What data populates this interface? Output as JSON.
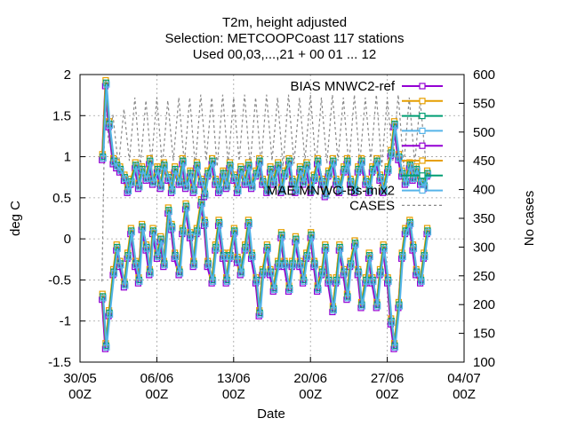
{
  "chart_data": {
    "type": "line",
    "title_lines": [
      "T2m, height adjusted",
      "Selection: METCOOPCoast    117 stations",
      "Used 00,03,...,21 + 00 01 ... 12"
    ],
    "xlabel": "Date",
    "ylabel": "deg C",
    "y2label": "No cases",
    "ylim": [
      -1.5,
      2
    ],
    "y2lim": [
      100,
      600
    ],
    "yticks": [
      "-1.5",
      "-1",
      "-0.5",
      "0",
      "0.5",
      "1",
      "1.5",
      "2"
    ],
    "y2ticks": [
      "100",
      "150",
      "200",
      "250",
      "300",
      "350",
      "400",
      "450",
      "500",
      "550",
      "600"
    ],
    "xticks": [
      {
        "day": 0,
        "l1": "30/05",
        "l2": "00Z"
      },
      {
        "day": 7,
        "l1": "06/06",
        "l2": "00Z"
      },
      {
        "day": 14,
        "l1": "13/06",
        "l2": "00Z"
      },
      {
        "day": 21,
        "l1": "20/06",
        "l2": "00Z"
      },
      {
        "day": 28,
        "l1": "27/06",
        "l2": "00Z"
      },
      {
        "day": 35,
        "l1": "04/07",
        "l2": "00Z"
      }
    ],
    "xlim_days": [
      0,
      35
    ],
    "grid": true,
    "legend_position": "top-right",
    "series": [
      {
        "name": "BIAS MNWC2-ref",
        "color": "#9400d3",
        "kind": "bias"
      },
      {
        "name": "",
        "color": "#e69f00",
        "kind": "bias"
      },
      {
        "name": "",
        "color": "#009e73",
        "kind": "bias"
      },
      {
        "name": "",
        "color": "#56b4e9",
        "kind": "bias"
      },
      {
        "name": "",
        "color": "#9400d3",
        "kind": "mae"
      },
      {
        "name": "",
        "color": "#e69f00",
        "kind": "mae"
      },
      {
        "name": "",
        "color": "#009e73",
        "kind": "mae"
      },
      {
        "name": "MAE MNWC-Bs-mix2",
        "color": "#56b4e9",
        "kind": "mae"
      },
      {
        "name": "CASES",
        "color": "#888888",
        "kind": "cases"
      }
    ],
    "bias_points": [
      {
        "day": 2.0,
        "y": -0.7
      },
      {
        "day": 2.3,
        "y": -1.3
      },
      {
        "day": 2.6,
        "y": -0.9
      },
      {
        "day": 3.0,
        "y": -0.4
      },
      {
        "day": 3.3,
        "y": -0.1
      },
      {
        "day": 3.6,
        "y": -0.3
      },
      {
        "day": 4.0,
        "y": -0.55
      },
      {
        "day": 4.3,
        "y": -0.2
      },
      {
        "day": 4.6,
        "y": 0.1
      },
      {
        "day": 5.0,
        "y": -0.3
      },
      {
        "day": 5.3,
        "y": -0.5
      },
      {
        "day": 5.6,
        "y": 0.15
      },
      {
        "day": 6.0,
        "y": -0.1
      },
      {
        "day": 6.3,
        "y": -0.4
      },
      {
        "day": 6.6,
        "y": 0.1
      },
      {
        "day": 7.0,
        "y": -0.2
      },
      {
        "day": 7.3,
        "y": 0.0
      },
      {
        "day": 7.6,
        "y": -0.3
      },
      {
        "day": 8.0,
        "y": 0.35
      },
      {
        "day": 8.3,
        "y": 0.15
      },
      {
        "day": 8.6,
        "y": -0.2
      },
      {
        "day": 9.0,
        "y": -0.4
      },
      {
        "day": 9.3,
        "y": 0.1
      },
      {
        "day": 9.6,
        "y": 0.4
      },
      {
        "day": 10.0,
        "y": 0.05
      },
      {
        "day": 10.3,
        "y": -0.3
      },
      {
        "day": 10.6,
        "y": 0.1
      },
      {
        "day": 11.0,
        "y": 0.45
      },
      {
        "day": 11.3,
        "y": 0.2
      },
      {
        "day": 11.6,
        "y": -0.3
      },
      {
        "day": 12.0,
        "y": -0.5
      },
      {
        "day": 12.3,
        "y": -0.1
      },
      {
        "day": 12.6,
        "y": 0.2
      },
      {
        "day": 13.0,
        "y": -0.2
      },
      {
        "day": 13.3,
        "y": -0.5
      },
      {
        "day": 13.6,
        "y": -0.2
      },
      {
        "day": 14.0,
        "y": 0.1
      },
      {
        "day": 14.3,
        "y": -0.25
      },
      {
        "day": 14.6,
        "y": -0.4
      },
      {
        "day": 15.0,
        "y": -0.1
      },
      {
        "day": 15.3,
        "y": 0.2
      },
      {
        "day": 15.6,
        "y": -0.2
      },
      {
        "day": 16.0,
        "y": -0.5
      },
      {
        "day": 16.3,
        "y": -0.9
      },
      {
        "day": 16.6,
        "y": -0.4
      },
      {
        "day": 17.0,
        "y": -0.1
      },
      {
        "day": 17.3,
        "y": -0.4
      },
      {
        "day": 17.6,
        "y": -0.6
      },
      {
        "day": 18.0,
        "y": -0.3
      },
      {
        "day": 18.3,
        "y": 0.05
      },
      {
        "day": 18.6,
        "y": -0.3
      },
      {
        "day": 19.0,
        "y": -0.6
      },
      {
        "day": 19.3,
        "y": -0.3
      },
      {
        "day": 19.6,
        "y": 0.0
      },
      {
        "day": 20.0,
        "y": -0.3
      },
      {
        "day": 20.3,
        "y": -0.5
      },
      {
        "day": 20.6,
        "y": -0.2
      },
      {
        "day": 21.0,
        "y": 0.05
      },
      {
        "day": 21.3,
        "y": -0.3
      },
      {
        "day": 21.6,
        "y": -0.6
      },
      {
        "day": 22.0,
        "y": -0.4
      },
      {
        "day": 22.3,
        "y": -0.1
      },
      {
        "day": 22.6,
        "y": -0.5
      },
      {
        "day": 23.0,
        "y": -0.85
      },
      {
        "day": 23.3,
        "y": -0.5
      },
      {
        "day": 23.6,
        "y": -0.1
      },
      {
        "day": 24.0,
        "y": -0.4
      },
      {
        "day": 24.3,
        "y": -0.7
      },
      {
        "day": 24.6,
        "y": -0.3
      },
      {
        "day": 25.0,
        "y": -0.05
      },
      {
        "day": 25.3,
        "y": -0.4
      },
      {
        "day": 25.6,
        "y": -0.8
      },
      {
        "day": 26.0,
        "y": -0.5
      },
      {
        "day": 26.3,
        "y": -0.2
      },
      {
        "day": 26.6,
        "y": -0.5
      },
      {
        "day": 27.0,
        "y": -0.8
      },
      {
        "day": 27.3,
        "y": -0.4
      },
      {
        "day": 27.6,
        "y": -0.1
      },
      {
        "day": 28.0,
        "y": -0.5
      },
      {
        "day": 28.3,
        "y": -1.0
      },
      {
        "day": 28.6,
        "y": -1.3
      },
      {
        "day": 29.0,
        "y": -0.8
      },
      {
        "day": 29.3,
        "y": -0.2
      },
      {
        "day": 29.6,
        "y": 0.1
      },
      {
        "day": 30.0,
        "y": 0.2
      },
      {
        "day": 30.3,
        "y": -0.1
      },
      {
        "day": 30.6,
        "y": -0.4
      },
      {
        "day": 31.0,
        "y": -0.5
      },
      {
        "day": 31.3,
        "y": -0.2
      },
      {
        "day": 31.6,
        "y": 0.1
      }
    ],
    "mae_points": [
      {
        "day": 2.0,
        "y": 1.0
      },
      {
        "day": 2.3,
        "y": 1.9
      },
      {
        "day": 2.6,
        "y": 1.4
      },
      {
        "day": 3.0,
        "y": 0.95
      },
      {
        "day": 3.3,
        "y": 0.9
      },
      {
        "day": 3.6,
        "y": 0.85
      },
      {
        "day": 4.0,
        "y": 0.75
      },
      {
        "day": 4.3,
        "y": 0.6
      },
      {
        "day": 4.6,
        "y": 0.7
      },
      {
        "day": 5.0,
        "y": 0.9
      },
      {
        "day": 5.3,
        "y": 0.65
      },
      {
        "day": 5.6,
        "y": 0.85
      },
      {
        "day": 6.0,
        "y": 0.75
      },
      {
        "day": 6.3,
        "y": 0.95
      },
      {
        "day": 6.6,
        "y": 0.7
      },
      {
        "day": 7.0,
        "y": 0.85
      },
      {
        "day": 7.3,
        "y": 0.65
      },
      {
        "day": 7.6,
        "y": 0.9
      },
      {
        "day": 8.0,
        "y": 0.75
      },
      {
        "day": 8.3,
        "y": 0.6
      },
      {
        "day": 8.6,
        "y": 0.85
      },
      {
        "day": 9.0,
        "y": 0.7
      },
      {
        "day": 9.3,
        "y": 0.95
      },
      {
        "day": 9.6,
        "y": 0.65
      },
      {
        "day": 10.0,
        "y": 0.8
      },
      {
        "day": 10.3,
        "y": 0.6
      },
      {
        "day": 10.6,
        "y": 0.9
      },
      {
        "day": 11.0,
        "y": 0.7
      },
      {
        "day": 11.3,
        "y": 0.55
      },
      {
        "day": 11.6,
        "y": 0.8
      },
      {
        "day": 12.0,
        "y": 0.95
      },
      {
        "day": 12.3,
        "y": 0.7
      },
      {
        "day": 12.6,
        "y": 0.6
      },
      {
        "day": 13.0,
        "y": 0.8
      },
      {
        "day": 13.3,
        "y": 0.65
      },
      {
        "day": 13.6,
        "y": 0.9
      },
      {
        "day": 14.0,
        "y": 0.75
      },
      {
        "day": 14.3,
        "y": 0.6
      },
      {
        "day": 14.6,
        "y": 0.85
      },
      {
        "day": 15.0,
        "y": 0.7
      },
      {
        "day": 15.3,
        "y": 0.9
      },
      {
        "day": 15.6,
        "y": 0.65
      },
      {
        "day": 16.0,
        "y": 0.8
      },
      {
        "day": 16.3,
        "y": 0.95
      },
      {
        "day": 16.6,
        "y": 0.7
      },
      {
        "day": 17.0,
        "y": 0.6
      },
      {
        "day": 17.3,
        "y": 0.85
      },
      {
        "day": 17.6,
        "y": 0.7
      },
      {
        "day": 18.0,
        "y": 0.9
      },
      {
        "day": 18.3,
        "y": 0.6
      },
      {
        "day": 18.6,
        "y": 0.8
      },
      {
        "day": 19.0,
        "y": 0.95
      },
      {
        "day": 19.3,
        "y": 0.7
      },
      {
        "day": 19.6,
        "y": 0.6
      },
      {
        "day": 20.0,
        "y": 0.85
      },
      {
        "day": 20.3,
        "y": 0.7
      },
      {
        "day": 20.6,
        "y": 0.9
      },
      {
        "day": 21.0,
        "y": 0.6
      },
      {
        "day": 21.3,
        "y": 0.75
      },
      {
        "day": 21.6,
        "y": 0.95
      },
      {
        "day": 22.0,
        "y": 0.7
      },
      {
        "day": 22.3,
        "y": 0.55
      },
      {
        "day": 22.6,
        "y": 0.8
      },
      {
        "day": 23.0,
        "y": 0.95
      },
      {
        "day": 23.3,
        "y": 0.7
      },
      {
        "day": 23.6,
        "y": 0.6
      },
      {
        "day": 24.0,
        "y": 0.85
      },
      {
        "day": 24.3,
        "y": 0.95
      },
      {
        "day": 24.6,
        "y": 0.7
      },
      {
        "day": 25.0,
        "y": 0.6
      },
      {
        "day": 25.3,
        "y": 0.85
      },
      {
        "day": 25.6,
        "y": 0.95
      },
      {
        "day": 26.0,
        "y": 0.7
      },
      {
        "day": 26.3,
        "y": 0.6
      },
      {
        "day": 26.6,
        "y": 0.85
      },
      {
        "day": 27.0,
        "y": 0.95
      },
      {
        "day": 27.3,
        "y": 0.75
      },
      {
        "day": 27.6,
        "y": 0.6
      },
      {
        "day": 28.0,
        "y": 0.85
      },
      {
        "day": 28.3,
        "y": 1.05
      },
      {
        "day": 28.6,
        "y": 1.4
      },
      {
        "day": 29.0,
        "y": 1.0
      },
      {
        "day": 29.3,
        "y": 0.8
      },
      {
        "day": 29.6,
        "y": 0.7
      },
      {
        "day": 30.0,
        "y": 0.9
      },
      {
        "day": 30.3,
        "y": 0.75
      },
      {
        "day": 30.6,
        "y": 0.85
      },
      {
        "day": 31.0,
        "y": 0.7
      },
      {
        "day": 31.3,
        "y": 0.65
      },
      {
        "day": 31.6,
        "y": 0.8
      }
    ],
    "cases_points": [
      {
        "day": 2.0,
        "cases": 240
      },
      {
        "day": 2.3,
        "cases": 580
      },
      {
        "day": 2.6,
        "cases": 480
      },
      {
        "day": 3.0,
        "cases": 530
      },
      {
        "day": 3.5,
        "cases": 440
      },
      {
        "day": 4.0,
        "cases": 540
      },
      {
        "day": 4.5,
        "cases": 450
      },
      {
        "day": 5.0,
        "cases": 560
      },
      {
        "day": 5.5,
        "cases": 440
      },
      {
        "day": 6.0,
        "cases": 555
      },
      {
        "day": 6.5,
        "cases": 445
      },
      {
        "day": 7.0,
        "cases": 560
      },
      {
        "day": 7.5,
        "cases": 440
      },
      {
        "day": 8.0,
        "cases": 555
      },
      {
        "day": 8.5,
        "cases": 450
      },
      {
        "day": 9.0,
        "cases": 560
      },
      {
        "day": 9.5,
        "cases": 445
      },
      {
        "day": 10.0,
        "cases": 560
      },
      {
        "day": 10.5,
        "cases": 440
      },
      {
        "day": 11.0,
        "cases": 565
      },
      {
        "day": 11.5,
        "cases": 450
      },
      {
        "day": 12.0,
        "cases": 560
      },
      {
        "day": 12.5,
        "cases": 440
      },
      {
        "day": 13.0,
        "cases": 565
      },
      {
        "day": 13.5,
        "cases": 445
      },
      {
        "day": 14.0,
        "cases": 560
      },
      {
        "day": 14.5,
        "cases": 450
      },
      {
        "day": 15.0,
        "cases": 565
      },
      {
        "day": 15.5,
        "cases": 440
      },
      {
        "day": 16.0,
        "cases": 560
      },
      {
        "day": 16.5,
        "cases": 445
      },
      {
        "day": 17.0,
        "cases": 565
      },
      {
        "day": 17.5,
        "cases": 450
      },
      {
        "day": 18.0,
        "cases": 560
      },
      {
        "day": 18.5,
        "cases": 440
      },
      {
        "day": 19.0,
        "cases": 565
      },
      {
        "day": 19.5,
        "cases": 445
      },
      {
        "day": 20.0,
        "cases": 560
      },
      {
        "day": 20.5,
        "cases": 450
      },
      {
        "day": 21.0,
        "cases": 565
      },
      {
        "day": 21.5,
        "cases": 440
      },
      {
        "day": 22.0,
        "cases": 560
      },
      {
        "day": 22.5,
        "cases": 445
      },
      {
        "day": 23.0,
        "cases": 565
      },
      {
        "day": 23.5,
        "cases": 450
      },
      {
        "day": 24.0,
        "cases": 560
      },
      {
        "day": 24.5,
        "cases": 440
      },
      {
        "day": 25.0,
        "cases": 565
      },
      {
        "day": 25.5,
        "cases": 445
      },
      {
        "day": 26.0,
        "cases": 560
      },
      {
        "day": 26.5,
        "cases": 450
      },
      {
        "day": 27.0,
        "cases": 565
      },
      {
        "day": 27.5,
        "cases": 440
      },
      {
        "day": 28.0,
        "cases": 560
      },
      {
        "day": 28.5,
        "cases": 450
      },
      {
        "day": 29.0,
        "cases": 565
      },
      {
        "day": 29.5,
        "cases": 440
      },
      {
        "day": 30.0,
        "cases": 560
      },
      {
        "day": 30.5,
        "cases": 445
      },
      {
        "day": 31.0,
        "cases": 555
      },
      {
        "day": 31.5,
        "cases": 450
      }
    ]
  }
}
